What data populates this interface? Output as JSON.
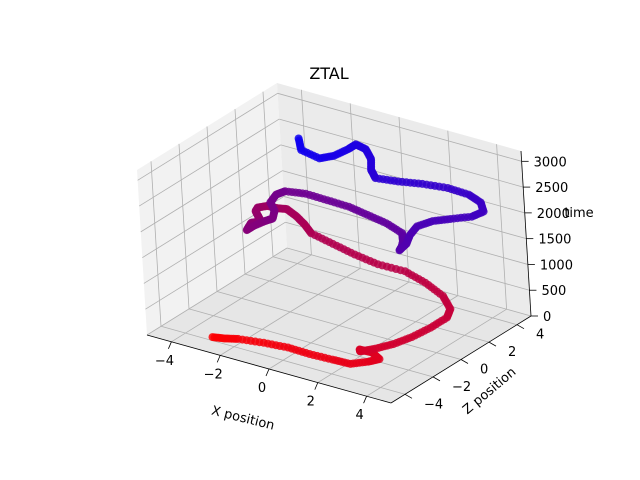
{
  "chart_data": {
    "type": "scatter",
    "projection": "3d",
    "title": "ZTAL",
    "xlabel": "X position",
    "ylabel": "Z position",
    "zlabel": "time",
    "xlim": [
      -5,
      5
    ],
    "ylim": [
      -5,
      5
    ],
    "zlim": [
      0,
      3200
    ],
    "xticks": [
      -4,
      -2,
      0,
      2,
      4
    ],
    "yticks": [
      -4,
      -2,
      0,
      2,
      4
    ],
    "zticks": [
      0,
      500,
      1000,
      1500,
      2000,
      2500,
      3000
    ],
    "tick_labels": {
      "x": [
        "−4",
        "−2",
        "0",
        "2",
        "4"
      ],
      "y": [
        "−4",
        "−2",
        "0",
        "2",
        "4"
      ],
      "z": [
        "0",
        "500",
        "1000",
        "1500",
        "2000",
        "2500",
        "3000"
      ]
    },
    "grid": true,
    "color_encoding": "time: red (early) to blue (late)",
    "color_start": "#ff0000",
    "color_end": "#0000ff",
    "pane_color": "#f2f2f2",
    "series": [
      {
        "points": [
          [
            -3,
            -3.8,
            20
          ],
          [
            -2.5,
            -3.8,
            60
          ],
          [
            -2,
            -3.7,
            100
          ],
          [
            -1,
            -3.6,
            140
          ],
          [
            0,
            -3.6,
            180
          ],
          [
            1,
            -3.8,
            220
          ],
          [
            2,
            -3.9,
            260
          ],
          [
            2.8,
            -4,
            300
          ],
          [
            3.3,
            -3.6,
            340
          ],
          [
            3.6,
            -3.3,
            380
          ],
          [
            3.2,
            -3.1,
            420
          ],
          [
            2.8,
            -3.3,
            460
          ],
          [
            3,
            -3.6,
            500
          ],
          [
            3.4,
            -3.2,
            540
          ],
          [
            3.8,
            -2.6,
            580
          ],
          [
            4.1,
            -1.8,
            620
          ],
          [
            4.3,
            -0.8,
            660
          ],
          [
            4.4,
            0.2,
            700
          ],
          [
            4.2,
            0.8,
            740
          ],
          [
            3.5,
            1.5,
            780
          ],
          [
            2.5,
            2,
            820
          ],
          [
            1.5,
            2.3,
            860
          ],
          [
            0.5,
            2.1,
            900
          ],
          [
            -0.5,
            2.2,
            940
          ],
          [
            -1.5,
            2.4,
            980
          ],
          [
            -2.5,
            2.6,
            1020
          ],
          [
            -3,
            3,
            1060
          ],
          [
            -3.5,
            3.3,
            1100
          ],
          [
            -4,
            3.5,
            1140
          ],
          [
            -4.2,
            3.2,
            1180
          ],
          [
            -4.5,
            3,
            1220
          ],
          [
            -4.6,
            2.5,
            1260
          ],
          [
            -4.4,
            2,
            1300
          ],
          [
            -4,
            1.5,
            1340
          ],
          [
            -3.6,
            1,
            1380
          ],
          [
            -3.7,
            0.5,
            1420
          ],
          [
            -3.5,
            0,
            1460
          ],
          [
            -3.3,
            -0.5,
            1500
          ],
          [
            -3.2,
            -0.2,
            1540
          ],
          [
            -3,
            0.3,
            1580
          ],
          [
            -2.8,
            0.5,
            1620
          ],
          [
            -3,
            1,
            1660
          ],
          [
            -3.4,
            1.4,
            1700
          ],
          [
            -3.5,
            2,
            1740
          ],
          [
            -3.3,
            2.3,
            1780
          ],
          [
            -2.5,
            2.4,
            1820
          ],
          [
            -1.5,
            2.2,
            1860
          ],
          [
            -0.5,
            2,
            1900
          ],
          [
            0.5,
            1.6,
            1940
          ],
          [
            1.5,
            1.2,
            1980
          ],
          [
            2.5,
            0.6,
            2020
          ],
          [
            3,
            -0.2,
            2060
          ],
          [
            3.3,
            -0.8,
            2100
          ],
          [
            3.5,
            -1.3,
            2140
          ],
          [
            3.5,
            -0.8,
            2180
          ],
          [
            3.3,
            -0.2,
            2220
          ],
          [
            3.2,
            0.5,
            2260
          ],
          [
            3.5,
            1.1,
            2300
          ],
          [
            4,
            1.5,
            2340
          ],
          [
            4.6,
            2,
            2380
          ],
          [
            4.8,
            2.5,
            2420
          ],
          [
            4.4,
            3,
            2460
          ],
          [
            3.8,
            3.2,
            2500
          ],
          [
            3,
            3.1,
            2540
          ],
          [
            2.2,
            2.7,
            2580
          ],
          [
            1.5,
            2.2,
            2620
          ],
          [
            0.8,
            1.8,
            2660
          ],
          [
            0.4,
            2.2,
            2700
          ],
          [
            0,
            2.9,
            2740
          ],
          [
            -0.5,
            3.4,
            2780
          ],
          [
            -0.9,
            3.4,
            2820
          ],
          [
            -0.8,
            2.7,
            2860
          ],
          [
            -0.8,
            1.7,
            2900
          ],
          [
            -1,
            1,
            2940
          ],
          [
            -1.8,
            1.1,
            2980
          ],
          [
            -2.3,
            1.8,
            3020
          ]
        ]
      }
    ]
  }
}
